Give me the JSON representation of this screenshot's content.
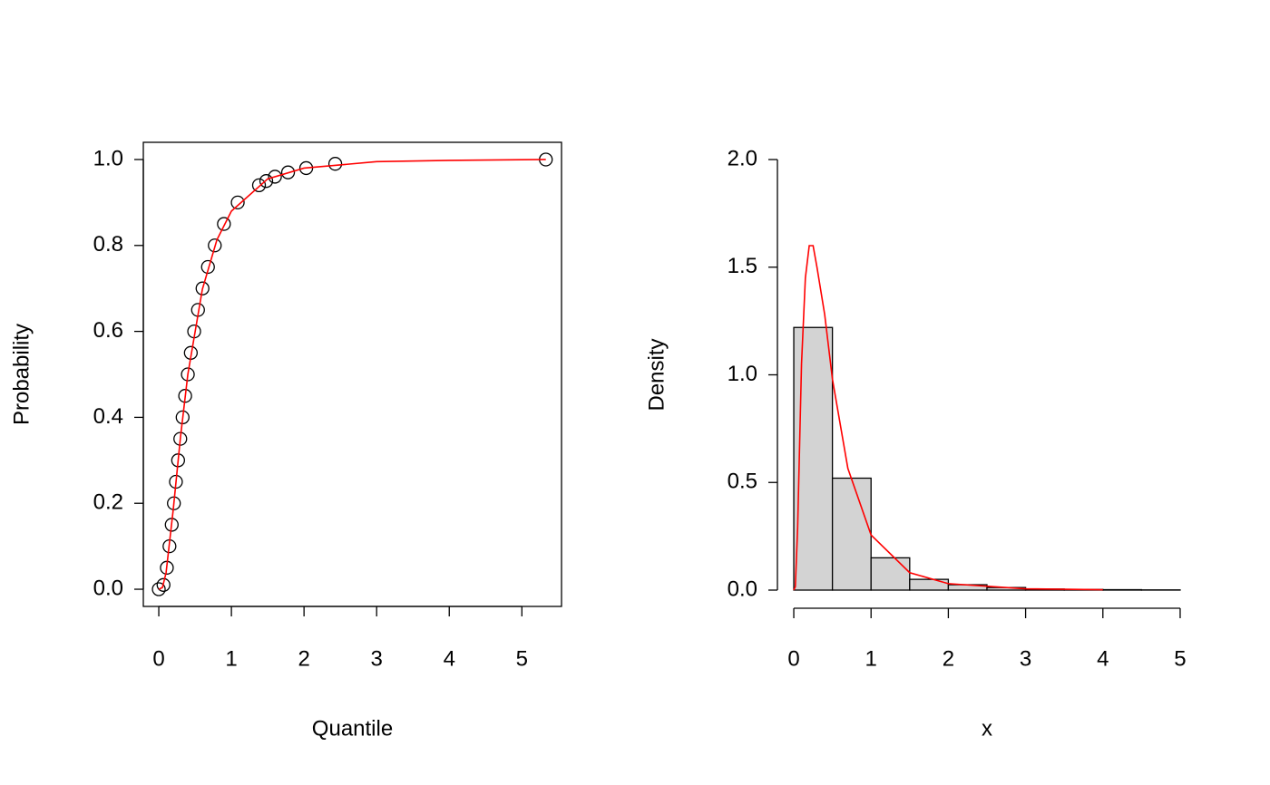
{
  "chart_data": [
    {
      "type": "scatter",
      "x_label": "Quantile",
      "y_label": "Probability",
      "xlim": [
        -0.213,
        5.546
      ],
      "ylim": [
        -0.04,
        1.04
      ],
      "xticks": [
        0,
        1,
        2,
        3,
        4,
        5
      ],
      "yticks": [
        {
          "value": 0,
          "label": "0.0"
        },
        0.2,
        0.4,
        0.6,
        0.8,
        {
          "value": 1,
          "label": "1.0"
        }
      ],
      "box": true,
      "points": {
        "color": "#000000",
        "x": [
          0,
          0.065,
          0.111,
          0.147,
          0.178,
          0.208,
          0.236,
          0.266,
          0.296,
          0.328,
          0.363,
          0.4,
          0.441,
          0.487,
          0.54,
          0.602,
          0.677,
          0.771,
          0.897,
          1.087,
          1.38,
          1.48,
          1.6,
          1.78,
          2.03,
          2.43,
          5.33
        ],
        "y": [
          0,
          0.01,
          0.05,
          0.1,
          0.15,
          0.2,
          0.25,
          0.3,
          0.35,
          0.4,
          0.45,
          0.5,
          0.55,
          0.6,
          0.65,
          0.7,
          0.75,
          0.8,
          0.85,
          0.9,
          0.94,
          0.95,
          0.96,
          0.97,
          0.98,
          0.99,
          1
        ]
      },
      "curve": {
        "color": "#ff0000",
        "x": [
          0,
          0.05,
          0.1,
          0.2,
          0.3,
          0.4,
          0.6,
          0.8,
          1,
          1.5,
          2,
          3,
          4,
          5.33
        ],
        "y": [
          0,
          0.004,
          0.038,
          0.187,
          0.356,
          0.5,
          0.698,
          0.813,
          0.88,
          0.955,
          0.98,
          0.995,
          0.998,
          1
        ]
      }
    },
    {
      "type": "histogram",
      "x_label": "x",
      "y_label": "Density",
      "xlim": [
        -0.2,
        5.2
      ],
      "ylim": [
        -0.08,
        2.08
      ],
      "xticks": [
        0,
        1,
        2,
        3,
        4,
        5
      ],
      "yticks": [
        {
          "value": 0,
          "label": "0.0"
        },
        0.5,
        {
          "value": 1,
          "label": "1.0"
        },
        1.5,
        {
          "value": 2,
          "label": "2.0"
        }
      ],
      "box": false,
      "bins": [
        0,
        0.5,
        1,
        1.5,
        2,
        2.5,
        3,
        3.5,
        4,
        4.5,
        5
      ],
      "values": [
        1.22,
        0.52,
        0.15,
        0.05,
        0.025,
        0.012,
        0.005,
        0.003,
        0.002,
        0.001
      ],
      "bar_color": "#d3d3d3",
      "curve": {
        "color": "#ff0000",
        "x": [
          0,
          0.02,
          0.05,
          0.1,
          0.15,
          0.2,
          0.25,
          0.3,
          0.4,
          0.5,
          0.7,
          1,
          1.5,
          2,
          3,
          4
        ],
        "y": [
          0,
          0.016,
          0.29,
          1.05,
          1.45,
          1.6,
          1.6,
          1.5,
          1.28,
          0.98,
          0.565,
          0.256,
          0.081,
          0.03,
          0.006,
          0.002
        ]
      }
    }
  ]
}
